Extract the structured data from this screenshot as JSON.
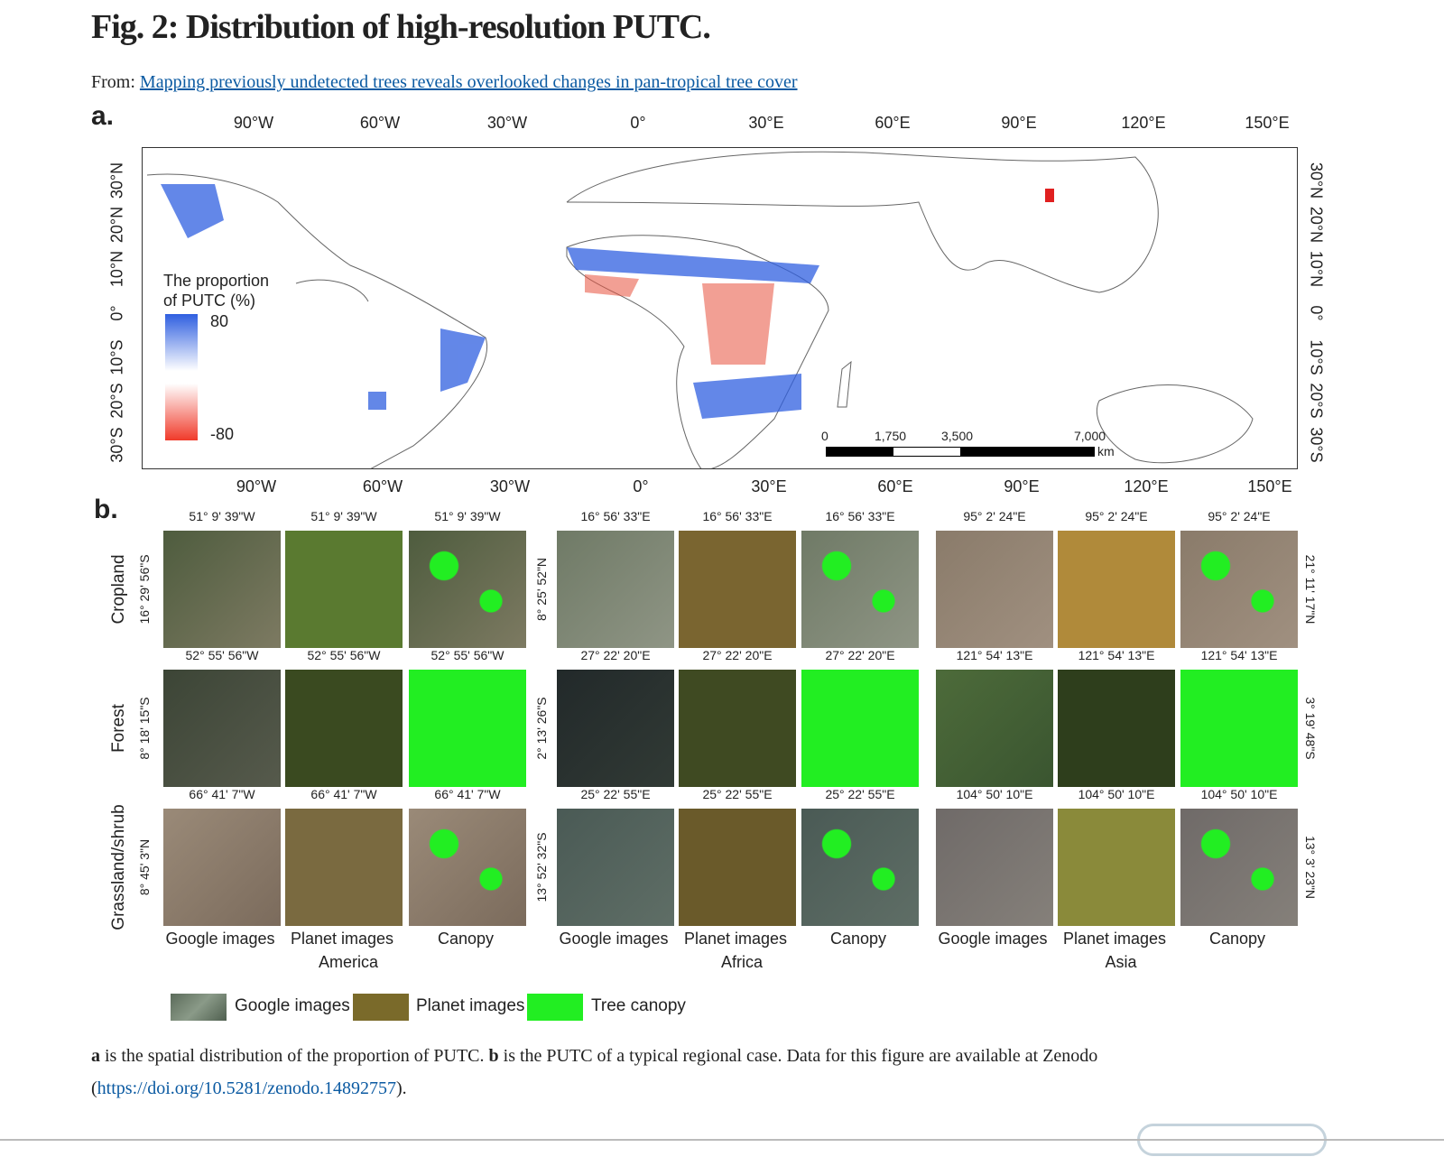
{
  "title": "Fig. 2: Distribution of high-resolution PUTC.",
  "from_label": "From:",
  "from_link": "Mapping previously undetected trees reveals overlooked changes in pan-tropical tree cover",
  "panel_a": {
    "label": "a.",
    "lon_ticks": [
      "90°W",
      "60°W",
      "30°W",
      "0°",
      "30°E",
      "60°E",
      "90°E",
      "120°E",
      "150°E"
    ],
    "lat_ticks": [
      "30°N",
      "20°N",
      "10°N",
      "0°",
      "10°S",
      "20°S",
      "30°S"
    ],
    "legend": {
      "title_line1": "The proportion",
      "title_line2": "of PUTC (%)",
      "max": "80",
      "min": "-80",
      "color_high": "#2f5fe0",
      "color_low": "#f03a2a"
    },
    "scalebar": {
      "ticks": [
        "0",
        "1,750",
        "3,500",
        "7,000"
      ],
      "unit": "km"
    }
  },
  "panel_b": {
    "label": "b.",
    "rows": [
      "Cropland",
      "Forest",
      "Grassland/shrub"
    ],
    "columns": [
      "Google images",
      "Planet images",
      "Canopy"
    ],
    "regions": [
      {
        "name": "America",
        "lons": [
          "51° 9' 39\"W",
          "52° 55' 56\"W",
          "66° 41' 7\"W"
        ],
        "lats": [
          "16° 29' 56\"S",
          "8° 18' 15\"S",
          "8° 45' 3\"N"
        ]
      },
      {
        "name": "Africa",
        "lons": [
          "16° 56' 33\"E",
          "27° 22' 20\"E",
          "25° 22' 55\"E"
        ],
        "lats": [
          "8° 25' 52\"N",
          "2° 13' 26\"S",
          "13° 52' 32\"S"
        ]
      },
      {
        "name": "Asia",
        "lons": [
          "95° 2' 24\"E",
          "121° 54' 13\"E",
          "104° 50' 10\"E"
        ],
        "lats": [
          "21° 11' 17\"N",
          "3° 19' 48\"S",
          "13° 3' 23\"N"
        ]
      }
    ],
    "legend": [
      "Google images",
      "Planet images",
      "Tree canopy"
    ],
    "canopy_color": "#22ee22"
  },
  "caption": {
    "a": "a",
    "a_text": " is the spatial distribution of the proportion of PUTC. ",
    "b": "b",
    "b_text": " is the PUTC of a typical regional case. Data for this figure are available at Zenodo",
    "open": "(",
    "link": "https://doi.org/10.5281/zenodo.14892757",
    "close": ")."
  }
}
